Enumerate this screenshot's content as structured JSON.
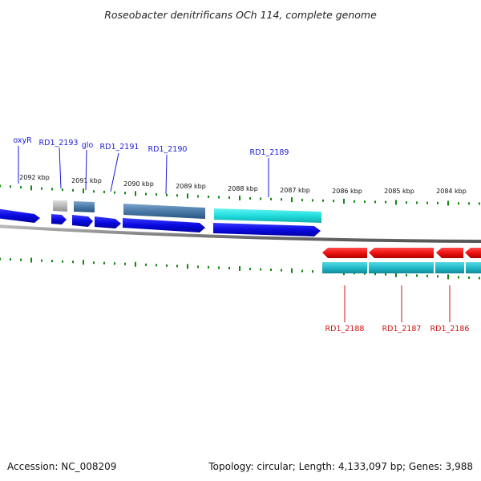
{
  "title": "Roseobacter denitrificans OCh 114, complete genome",
  "footer": {
    "accession": "Accession: NC_008209",
    "summary": "Topology: circular; Length: 4,133,097 bp; Genes: 3,988"
  },
  "kbp_labels": [
    "2092 kbp",
    "2091 kbp",
    "2090 kbp",
    "2089 kbp",
    "2088 kbp",
    "2087 kbp",
    "2086 kbp",
    "2085 kbp",
    "2084 kbp"
  ],
  "forward_gene_labels": [
    "oxyR",
    "RD1_2193",
    "glo",
    "RD1_2191",
    "RD1_2190",
    "RD1_2189"
  ],
  "reverse_gene_labels": [
    "RD1_2188",
    "RD1_2187",
    "RD1_2186"
  ],
  "colors": {
    "forward_cds": "#0a0ae0",
    "reverse_cds": "#ee1111",
    "cyan_feature": "#22dddd",
    "teal_feature": "#22bbcc",
    "steel_feature": "#4a7aa8",
    "gray_feature": "#b8b8b8",
    "tick_green": "#118811",
    "backbone": "#888888"
  }
}
